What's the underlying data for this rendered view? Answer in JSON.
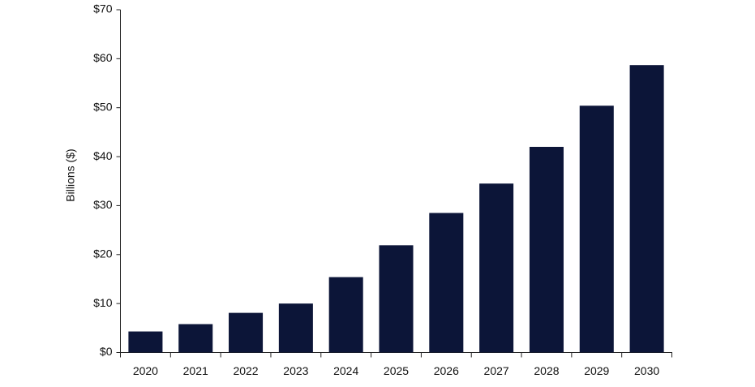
{
  "chart_data": {
    "type": "bar",
    "y_label": "Billions ($)",
    "categories": [
      "2020",
      "2021",
      "2022",
      "2023",
      "2024",
      "2025",
      "2026",
      "2027",
      "2028",
      "2029",
      "2030"
    ],
    "values": [
      4.3,
      5.8,
      8.1,
      10.0,
      15.4,
      21.9,
      28.5,
      34.5,
      42.0,
      50.4,
      58.7
    ],
    "color": "#0c1538",
    "ylim": [
      0,
      70
    ],
    "yticks": [
      {
        "value": 0,
        "label": "$0"
      },
      {
        "value": 10,
        "label": "$10"
      },
      {
        "value": 20,
        "label": "$20"
      },
      {
        "value": 30,
        "label": "$30"
      },
      {
        "value": 40,
        "label": "$40"
      },
      {
        "value": 50,
        "label": "$50"
      },
      {
        "value": 60,
        "label": "$60"
      },
      {
        "value": 70,
        "label": "$70"
      }
    ],
    "grid": false
  }
}
